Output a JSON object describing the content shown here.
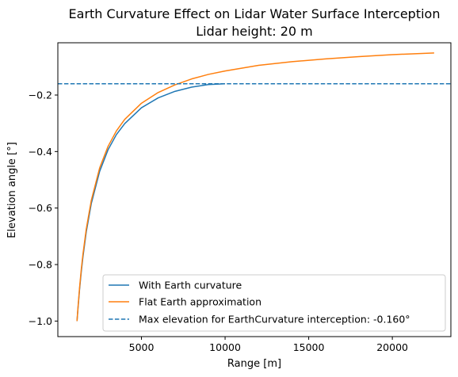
{
  "chart_data": {
    "type": "line",
    "title": "Earth Curvature Effect on Lidar Water Surface Interception",
    "subtitle": "Lidar height: 20 m",
    "xlabel": "Range [m]",
    "ylabel": "Elevation angle [°]",
    "xlim": [
      0,
      23500
    ],
    "ylim": [
      -1.055,
      -0.015
    ],
    "xticks": [
      5000,
      10000,
      15000,
      20000
    ],
    "yticks": [
      -1.0,
      -0.8,
      -0.6,
      -0.4,
      -0.2
    ],
    "xtick_labels": [
      "5000",
      "10000",
      "15000",
      "20000"
    ],
    "ytick_labels": [
      "−1.0",
      "−0.8",
      "−0.6",
      "−0.4",
      "−0.2"
    ],
    "grid": false,
    "legend_position": "lower-right",
    "series": [
      {
        "name": "With Earth curvature",
        "color": "#1f77b4",
        "style": "solid",
        "x": [
          1146,
          1200,
          1300,
          1400,
          1500,
          1700,
          2000,
          2500,
          3000,
          3500,
          4000,
          5000,
          6000,
          7000,
          8000,
          9000,
          10000
        ],
        "y": [
          -1.0,
          -0.959,
          -0.887,
          -0.826,
          -0.773,
          -0.684,
          -0.584,
          -0.47,
          -0.394,
          -0.34,
          -0.301,
          -0.245,
          -0.21,
          -0.187,
          -0.172,
          -0.163,
          -0.16
        ]
      },
      {
        "name": "Flat Earth approximation",
        "color": "#ff7f0e",
        "style": "solid",
        "x": [
          1146,
          1200,
          1300,
          1400,
          1500,
          1700,
          2000,
          2500,
          3000,
          3500,
          4000,
          5000,
          6000,
          7000,
          8000,
          9000,
          10000,
          12000,
          14000,
          16000,
          18000,
          20000,
          22500
        ],
        "y": [
          -1.0,
          -0.955,
          -0.881,
          -0.818,
          -0.764,
          -0.674,
          -0.573,
          -0.458,
          -0.382,
          -0.327,
          -0.286,
          -0.229,
          -0.191,
          -0.164,
          -0.143,
          -0.127,
          -0.115,
          -0.095,
          -0.082,
          -0.072,
          -0.064,
          -0.057,
          -0.051
        ]
      },
      {
        "name": "Max elevation for EarthCurvature interception: -0.160°",
        "color": "#1f77b4",
        "style": "dashed",
        "hline": -0.16
      }
    ]
  }
}
